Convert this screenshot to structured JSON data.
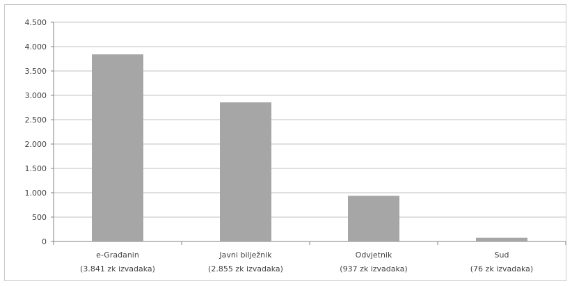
{
  "chart_data": {
    "type": "bar",
    "categories": [
      {
        "line1": "e-Građanin",
        "line2": "(3.841 zk izvadaka)"
      },
      {
        "line1": "Javni bilježnik",
        "line2": "(2.855 zk izvadaka)"
      },
      {
        "line1": "Odvjetnik",
        "line2": "(937 zk izvadaka)"
      },
      {
        "line1": "Sud",
        "line2": "(76 zk izvadaka)"
      }
    ],
    "values": [
      3841,
      2855,
      937,
      76
    ],
    "ylim": [
      0,
      4500
    ],
    "yticks": [
      {
        "value": 0,
        "label": "0"
      },
      {
        "value": 500,
        "label": "500"
      },
      {
        "value": 1000,
        "label": "1.000"
      },
      {
        "value": 1500,
        "label": "1.500"
      },
      {
        "value": 2000,
        "label": "2.000"
      },
      {
        "value": 2500,
        "label": "2.500"
      },
      {
        "value": 3000,
        "label": "3.000"
      },
      {
        "value": 3500,
        "label": "3.500"
      },
      {
        "value": 4000,
        "label": "4.000"
      },
      {
        "value": 4500,
        "label": "4.500"
      }
    ],
    "grid": true,
    "legend": "none",
    "colors": {
      "bar": "#a6a6a6",
      "grid": "#c0c0c0",
      "axis": "#808080"
    }
  }
}
